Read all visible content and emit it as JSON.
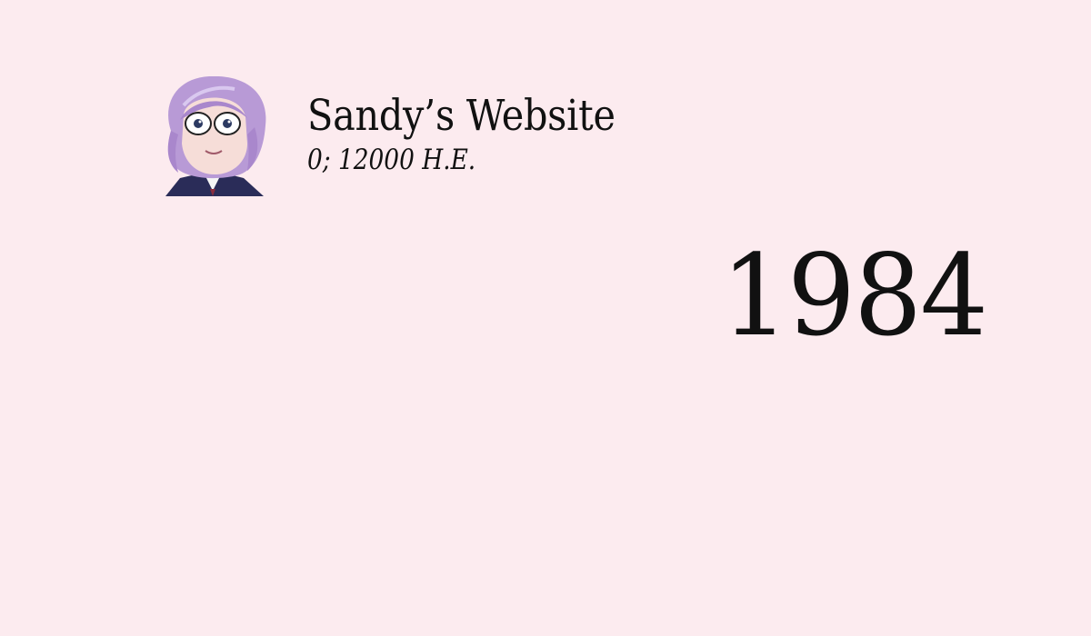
{
  "header": {
    "site_title": "Sandy’s Website",
    "date": "0; 12000 H.E."
  },
  "main": {
    "year": "1984"
  },
  "avatar": {
    "icon": "anime-avatar-icon",
    "colors": {
      "hair": "#b89ad6",
      "skin": "#f6ddd8",
      "jacket": "#2a2c58",
      "shirt": "#f5f5f5"
    }
  }
}
